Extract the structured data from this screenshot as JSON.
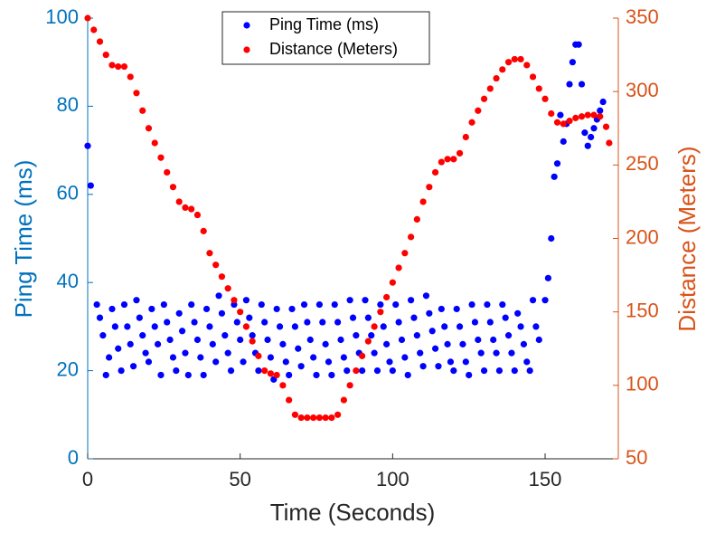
{
  "chart_data": {
    "type": "scatter",
    "xlabel": "Time (Seconds)",
    "ylabel": "Ping Time (ms)",
    "y2label": "Distance (Meters)",
    "xlim": [
      0,
      174
    ],
    "xticks": [
      0,
      50,
      100,
      150
    ],
    "ylim": [
      0,
      100
    ],
    "yticks": [
      0,
      20,
      40,
      60,
      80,
      100
    ],
    "y2lim": [
      50,
      350
    ],
    "y2ticks": [
      50,
      100,
      150,
      200,
      250,
      300,
      350
    ],
    "ycolor": "#0072bd",
    "y2color": "#d95319",
    "legend": "north",
    "series": [
      {
        "name": "Ping Time (ms)",
        "color": "#0000ff",
        "x": [
          0,
          1,
          3,
          4,
          5,
          6,
          7,
          8,
          9,
          10,
          11,
          12,
          13,
          14,
          15,
          16,
          17,
          18,
          19,
          20,
          21,
          22,
          23,
          24,
          25,
          26,
          27,
          28,
          29,
          30,
          31,
          32,
          33,
          34,
          35,
          36,
          37,
          38,
          39,
          40,
          41,
          42,
          43,
          44,
          45,
          46,
          47,
          48,
          49,
          50,
          51,
          52,
          53,
          54,
          55,
          56,
          57,
          58,
          59,
          60,
          61,
          62,
          63,
          64,
          65,
          66,
          67,
          68,
          69,
          70,
          71,
          72,
          73,
          74,
          75,
          76,
          77,
          78,
          79,
          80,
          81,
          82,
          83,
          84,
          85,
          86,
          87,
          88,
          89,
          90,
          91,
          92,
          93,
          94,
          95,
          96,
          97,
          98,
          99,
          100,
          101,
          102,
          103,
          104,
          105,
          106,
          107,
          108,
          109,
          110,
          111,
          112,
          113,
          114,
          115,
          116,
          117,
          118,
          119,
          120,
          121,
          122,
          123,
          124,
          125,
          126,
          127,
          128,
          129,
          130,
          131,
          132,
          133,
          134,
          135,
          136,
          137,
          138,
          139,
          140,
          141,
          142,
          143,
          144,
          145,
          146,
          147,
          148,
          150,
          151,
          152,
          153,
          154,
          155,
          156,
          157,
          158,
          159,
          160,
          161,
          162,
          163,
          164,
          165,
          166,
          167,
          168,
          169
        ],
        "values": [
          71,
          62,
          35,
          32,
          28,
          19,
          23,
          34,
          30,
          25,
          20,
          35,
          30,
          26,
          21,
          36,
          32,
          28,
          24,
          22,
          34,
          30,
          26,
          19,
          35,
          31,
          27,
          23,
          20,
          33,
          29,
          24,
          19,
          35,
          31,
          27,
          23,
          19,
          34,
          30,
          26,
          22,
          37,
          33,
          28,
          24,
          20,
          35,
          31,
          27,
          22,
          36,
          32,
          28,
          24,
          20,
          35,
          31,
          27,
          23,
          18,
          34,
          30,
          26,
          22,
          19,
          34,
          30,
          25,
          21,
          35,
          31,
          27,
          23,
          19,
          35,
          31,
          26,
          22,
          19,
          35,
          31,
          27,
          23,
          20,
          36,
          32,
          28,
          24,
          20,
          36,
          32,
          28,
          24,
          20,
          35,
          30,
          26,
          22,
          20,
          35,
          31,
          27,
          23,
          19,
          36,
          32,
          28,
          24,
          21,
          37,
          33,
          29,
          25,
          21,
          34,
          30,
          26,
          22,
          20,
          34,
          30,
          26,
          22,
          19,
          35,
          31,
          27,
          24,
          20,
          35,
          31,
          27,
          24,
          20,
          35,
          32,
          28,
          24,
          20,
          33,
          30,
          26,
          22,
          20,
          36,
          30,
          27,
          36,
          41,
          50,
          64,
          67,
          78,
          72,
          76,
          85,
          90,
          94,
          94,
          85,
          74,
          71,
          73,
          75,
          77,
          79,
          81
        ]
      },
      {
        "name": "Distance (Meters)",
        "color": "#ff0000",
        "axis": "y2",
        "x": [
          0,
          2,
          4,
          6,
          8,
          10,
          12,
          14,
          16,
          18,
          20,
          22,
          24,
          26,
          28,
          30,
          32,
          34,
          36,
          38,
          40,
          42,
          44,
          46,
          48,
          50,
          52,
          54,
          56,
          58,
          60,
          62,
          64,
          66,
          68,
          70,
          72,
          74,
          76,
          78,
          80,
          82,
          84,
          86,
          88,
          90,
          92,
          94,
          96,
          98,
          100,
          102,
          104,
          106,
          108,
          110,
          112,
          114,
          116,
          118,
          120,
          122,
          124,
          126,
          128,
          130,
          132,
          134,
          136,
          138,
          140,
          142,
          144,
          146,
          148,
          150,
          152,
          154,
          156,
          158,
          160,
          162,
          164,
          166,
          168,
          170,
          171
        ],
        "values": [
          350,
          342,
          334,
          325,
          318,
          317,
          317,
          310,
          299,
          287,
          275,
          265,
          255,
          245,
          235,
          225,
          221,
          220,
          216,
          205,
          190,
          182,
          174,
          166,
          158,
          150,
          140,
          130,
          120,
          110,
          108,
          107,
          100,
          90,
          80,
          78,
          78,
          78,
          78,
          78,
          78,
          80,
          90,
          100,
          110,
          120,
          130,
          140,
          150,
          160,
          170,
          180,
          190,
          201,
          213,
          225,
          235,
          245,
          252,
          254,
          254,
          258,
          269,
          279,
          287,
          295,
          302,
          309,
          315,
          320,
          322,
          322,
          318,
          310,
          302,
          295,
          285,
          279,
          278,
          280,
          282,
          283,
          284,
          284,
          283,
          276,
          265
        ]
      }
    ]
  }
}
